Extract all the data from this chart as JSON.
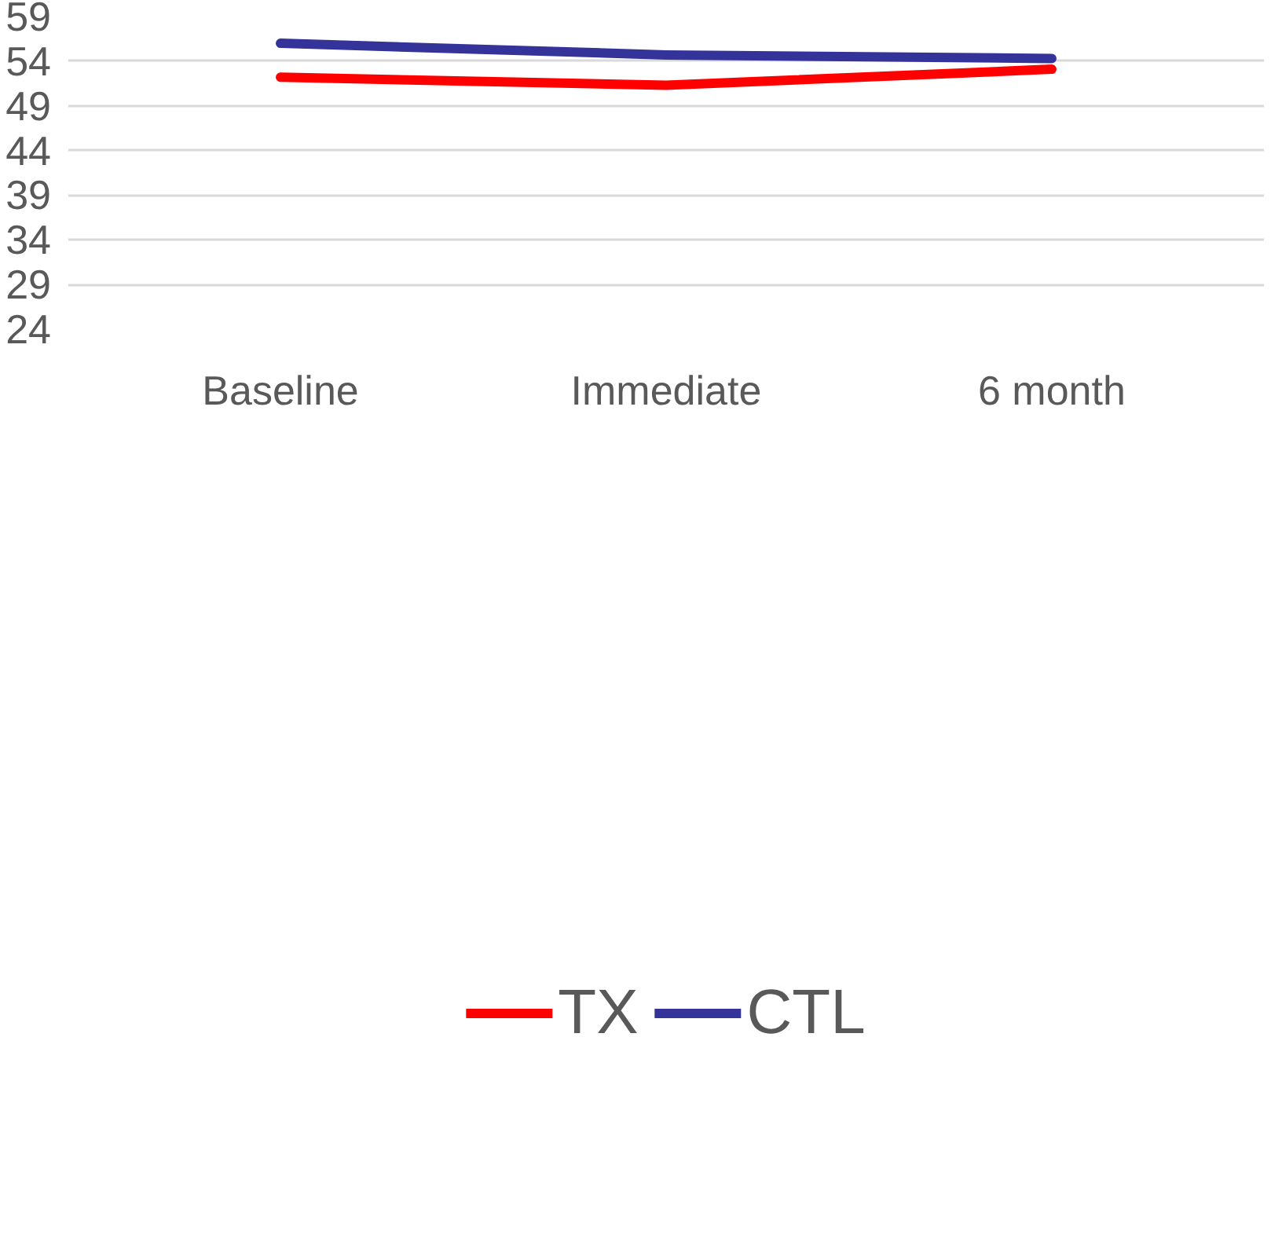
{
  "chart_data": {
    "type": "line",
    "categories": [
      "Baseline",
      "Immediate",
      "6 month"
    ],
    "series": [
      {
        "name": "TX",
        "color": "#ff0000",
        "values": [
          52.2,
          51.3,
          53.1
        ]
      },
      {
        "name": "CTL",
        "color": "#333399",
        "values": [
          56.0,
          54.7,
          54.3
        ]
      }
    ],
    "ylim": [
      24,
      59
    ],
    "yticks": [
      24,
      29,
      34,
      39,
      44,
      49,
      54,
      59
    ],
    "grid": "y",
    "legend": "bottom",
    "line_style": "solid",
    "marker": "none"
  }
}
